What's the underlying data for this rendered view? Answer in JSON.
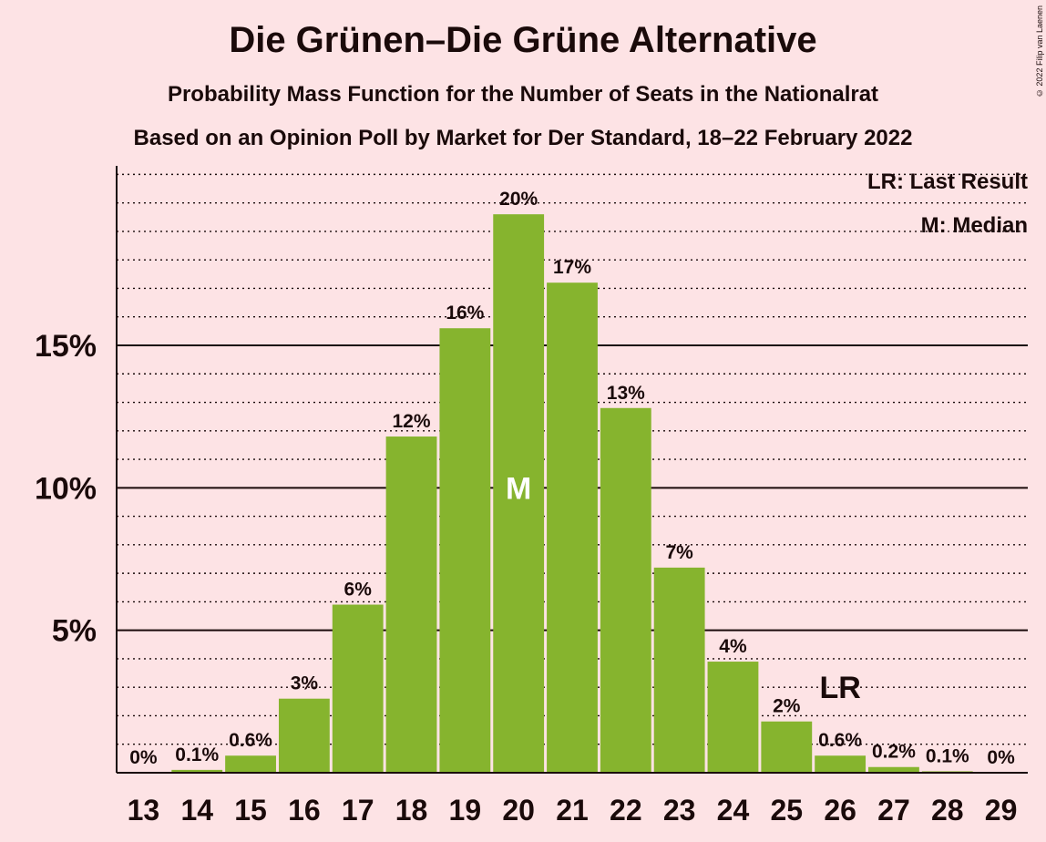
{
  "title": "Die Grünen–Die Grüne Alternative",
  "subtitle1": "Probability Mass Function for the Number of Seats in the Nationalrat",
  "subtitle2": "Based on an Opinion Poll by Market for Der Standard, 18–22 February 2022",
  "copyright": "© 2022 Filip van Laenen",
  "legend": {
    "last_result": "LR: Last Result",
    "median": "M: Median"
  },
  "colors": {
    "bar": "#86B42E",
    "background": "#FDE3E5",
    "text": "#1a0a0a"
  },
  "chart_data": {
    "type": "bar",
    "categories": [
      "13",
      "14",
      "15",
      "16",
      "17",
      "18",
      "19",
      "20",
      "21",
      "22",
      "23",
      "24",
      "25",
      "26",
      "27",
      "28",
      "29"
    ],
    "values": [
      0,
      0.1,
      0.6,
      2.6,
      5.9,
      11.8,
      15.6,
      19.6,
      17.2,
      12.8,
      7.2,
      3.9,
      1.8,
      0.6,
      0.2,
      0.05,
      0
    ],
    "labels": [
      "0%",
      "0.1%",
      "0.6%",
      "3%",
      "6%",
      "12%",
      "16%",
      "20%",
      "17%",
      "13%",
      "7%",
      "4%",
      "2%",
      "0.6%",
      "0.2%",
      "0.1%",
      "0%"
    ],
    "ylim": [
      0,
      21.3
    ],
    "yticks": [
      5,
      10,
      15
    ],
    "ytick_labels": [
      "5%",
      "10%",
      "15%"
    ],
    "grid": "dotted minor lines every 1%, solid lines at 5%, 10%, 15%",
    "median_category": "20",
    "median_label": "M",
    "last_result_category": "26",
    "last_result_label": "LR",
    "legend_position": "top-right"
  }
}
